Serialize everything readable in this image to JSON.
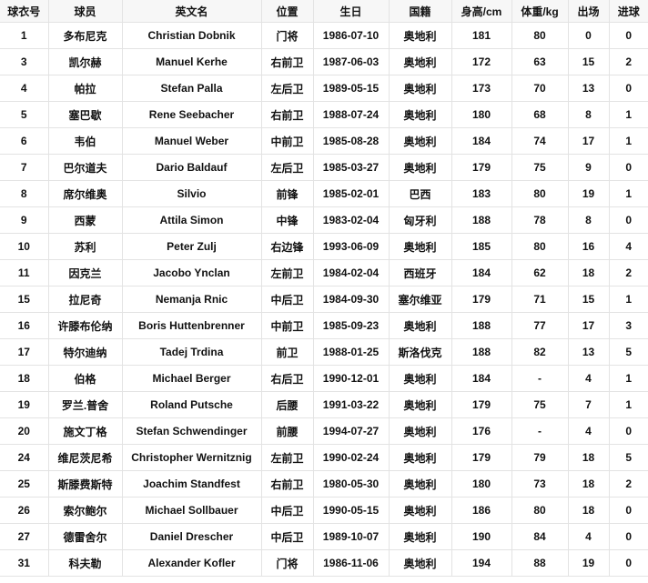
{
  "table": {
    "headers": [
      "球衣号",
      "球员",
      "英文名",
      "位置",
      "生日",
      "国籍",
      "身高/cm",
      "体重/kg",
      "出场",
      "进球"
    ],
    "rows": [
      [
        "1",
        "多布尼克",
        "Christian Dobnik",
        "门将",
        "1986-07-10",
        "奥地利",
        "181",
        "80",
        "0",
        "0"
      ],
      [
        "3",
        "凯尔赫",
        "Manuel Kerhe",
        "右前卫",
        "1987-06-03",
        "奥地利",
        "172",
        "63",
        "15",
        "2"
      ],
      [
        "4",
        "帕拉",
        "Stefan Palla",
        "左后卫",
        "1989-05-15",
        "奥地利",
        "173",
        "70",
        "13",
        "0"
      ],
      [
        "5",
        "塞巴歇",
        "Rene Seebacher",
        "右前卫",
        "1988-07-24",
        "奥地利",
        "180",
        "68",
        "8",
        "1"
      ],
      [
        "6",
        "韦伯",
        "Manuel Weber",
        "中前卫",
        "1985-08-28",
        "奥地利",
        "184",
        "74",
        "17",
        "1"
      ],
      [
        "7",
        "巴尔道夫",
        "Dario Baldauf",
        "左后卫",
        "1985-03-27",
        "奥地利",
        "179",
        "75",
        "9",
        "0"
      ],
      [
        "8",
        "席尔维奥",
        "Silvio",
        "前锋",
        "1985-02-01",
        "巴西",
        "183",
        "80",
        "19",
        "1"
      ],
      [
        "9",
        "西蒙",
        "Attila Simon",
        "中锋",
        "1983-02-04",
        "匈牙利",
        "188",
        "78",
        "8",
        "0"
      ],
      [
        "10",
        "苏利",
        "Peter Zulj",
        "右边锋",
        "1993-06-09",
        "奥地利",
        "185",
        "80",
        "16",
        "4"
      ],
      [
        "11",
        "因克兰",
        "Jacobo Ynclan",
        "左前卫",
        "1984-02-04",
        "西班牙",
        "184",
        "62",
        "18",
        "2"
      ],
      [
        "15",
        "拉尼奇",
        "Nemanja Rnic",
        "中后卫",
        "1984-09-30",
        "塞尔维亚",
        "179",
        "71",
        "15",
        "1"
      ],
      [
        "16",
        "许滕布伦纳",
        "Boris Huttenbrenner",
        "中前卫",
        "1985-09-23",
        "奥地利",
        "188",
        "77",
        "17",
        "3"
      ],
      [
        "17",
        "特尔迪纳",
        "Tadej Trdina",
        "前卫",
        "1988-01-25",
        "斯洛伐克",
        "188",
        "82",
        "13",
        "5"
      ],
      [
        "18",
        "伯格",
        "Michael Berger",
        "右后卫",
        "1990-12-01",
        "奥地利",
        "184",
        "-",
        "4",
        "1"
      ],
      [
        "19",
        "罗兰.普舍",
        "Roland Putsche",
        "后腰",
        "1991-03-22",
        "奥地利",
        "179",
        "75",
        "7",
        "1"
      ],
      [
        "20",
        "施文丁格",
        "Stefan Schwendinger",
        "前腰",
        "1994-07-27",
        "奥地利",
        "176",
        "-",
        "4",
        "0"
      ],
      [
        "24",
        "维尼茨尼希",
        "Christopher Wernitznig",
        "左前卫",
        "1990-02-24",
        "奥地利",
        "179",
        "79",
        "18",
        "5"
      ],
      [
        "25",
        "斯滕费斯特",
        "Joachim Standfest",
        "右前卫",
        "1980-05-30",
        "奥地利",
        "180",
        "73",
        "18",
        "2"
      ],
      [
        "26",
        "索尔鲍尔",
        "Michael Sollbauer",
        "中后卫",
        "1990-05-15",
        "奥地利",
        "186",
        "80",
        "18",
        "0"
      ],
      [
        "27",
        "德雷舍尔",
        "Daniel Drescher",
        "中后卫",
        "1989-10-07",
        "奥地利",
        "190",
        "84",
        "4",
        "0"
      ],
      [
        "31",
        "科夫勒",
        "Alexander Kofler",
        "门将",
        "1986-11-06",
        "奥地利",
        "194",
        "88",
        "19",
        "0"
      ]
    ]
  }
}
